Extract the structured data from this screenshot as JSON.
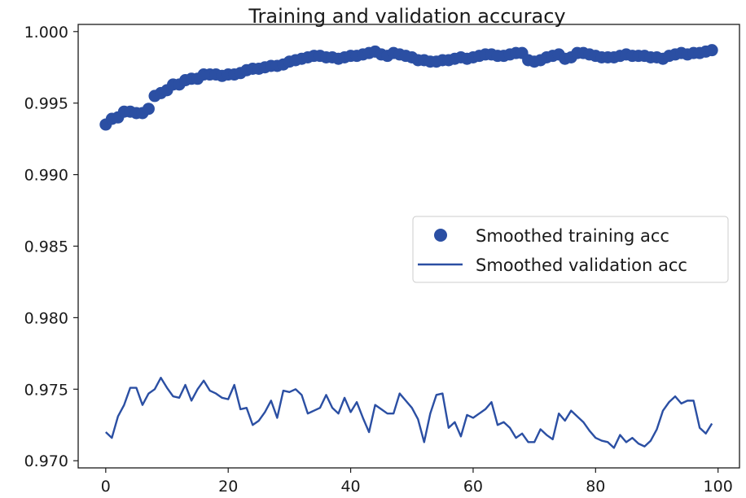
{
  "chart_data": {
    "type": "line",
    "title": "Training and validation accuracy",
    "xlabel": "",
    "ylabel": "",
    "xlim": [
      -4.5,
      103.5
    ],
    "ylim": [
      0.9695,
      1.0005
    ],
    "x_ticks": [
      0,
      20,
      40,
      60,
      80,
      100
    ],
    "x_tick_labels": [
      "0",
      "20",
      "40",
      "60",
      "80",
      "100"
    ],
    "y_ticks": [
      0.97,
      0.975,
      0.98,
      0.985,
      0.99,
      0.995,
      1.0
    ],
    "y_tick_labels": [
      "0.970",
      "0.975",
      "0.980",
      "0.985",
      "0.990",
      "0.995",
      "1.000"
    ],
    "grid": false,
    "legend_position": "center-right",
    "series": [
      {
        "name": "Smoothed training acc",
        "marker": "circle",
        "color": "#2b4fa3",
        "x": [
          0,
          1,
          2,
          3,
          4,
          5,
          6,
          7,
          8,
          9,
          10,
          11,
          12,
          13,
          14,
          15,
          16,
          17,
          18,
          19,
          20,
          21,
          22,
          23,
          24,
          25,
          26,
          27,
          28,
          29,
          30,
          31,
          32,
          33,
          34,
          35,
          36,
          37,
          38,
          39,
          40,
          41,
          42,
          43,
          44,
          45,
          46,
          47,
          48,
          49,
          50,
          51,
          52,
          53,
          54,
          55,
          56,
          57,
          58,
          59,
          60,
          61,
          62,
          63,
          64,
          65,
          66,
          67,
          68,
          69,
          70,
          71,
          72,
          73,
          74,
          75,
          76,
          77,
          78,
          79,
          80,
          81,
          82,
          83,
          84,
          85,
          86,
          87,
          88,
          89,
          90,
          91,
          92,
          93,
          94,
          95,
          96,
          97,
          98,
          99
        ],
        "values": [
          0.9935,
          0.9939,
          0.994,
          0.9944,
          0.9944,
          0.9943,
          0.9943,
          0.9946,
          0.9955,
          0.9957,
          0.9959,
          0.9963,
          0.9963,
          0.9966,
          0.9967,
          0.9967,
          0.997,
          0.997,
          0.997,
          0.9969,
          0.997,
          0.997,
          0.9971,
          0.9973,
          0.9974,
          0.9974,
          0.9975,
          0.9976,
          0.9976,
          0.9977,
          0.9979,
          0.998,
          0.9981,
          0.9982,
          0.9983,
          0.9983,
          0.9982,
          0.9982,
          0.9981,
          0.9982,
          0.9983,
          0.9983,
          0.9984,
          0.9985,
          0.9986,
          0.9984,
          0.9983,
          0.9985,
          0.9984,
          0.9983,
          0.9982,
          0.998,
          0.998,
          0.9979,
          0.9979,
          0.998,
          0.998,
          0.9981,
          0.9982,
          0.9981,
          0.9982,
          0.9983,
          0.9984,
          0.9984,
          0.9983,
          0.9983,
          0.9984,
          0.9985,
          0.9985,
          0.998,
          0.9979,
          0.998,
          0.9982,
          0.9983,
          0.9984,
          0.9981,
          0.9982,
          0.9985,
          0.9985,
          0.9984,
          0.9983,
          0.9982,
          0.9982,
          0.9982,
          0.9983,
          0.9984,
          0.9983,
          0.9983,
          0.9983,
          0.9982,
          0.9982,
          0.9981,
          0.9983,
          0.9984,
          0.9985,
          0.9984,
          0.9985,
          0.9985,
          0.9986,
          0.9987
        ]
      },
      {
        "name": "Smoothed validation acc",
        "marker": "line",
        "color": "#2b4fa3",
        "x": [
          0,
          1,
          2,
          3,
          4,
          5,
          6,
          7,
          8,
          9,
          10,
          11,
          12,
          13,
          14,
          15,
          16,
          17,
          18,
          19,
          20,
          21,
          22,
          23,
          24,
          25,
          26,
          27,
          28,
          29,
          30,
          31,
          32,
          33,
          34,
          35,
          36,
          37,
          38,
          39,
          40,
          41,
          42,
          43,
          44,
          45,
          46,
          47,
          48,
          49,
          50,
          51,
          52,
          53,
          54,
          55,
          56,
          57,
          58,
          59,
          60,
          61,
          62,
          63,
          64,
          65,
          66,
          67,
          68,
          69,
          70,
          71,
          72,
          73,
          74,
          75,
          76,
          77,
          78,
          79,
          80,
          81,
          82,
          83,
          84,
          85,
          86,
          87,
          88,
          89,
          90,
          91,
          92,
          93,
          94,
          95,
          96,
          97,
          98,
          99
        ],
        "values": [
          0.972,
          0.9716,
          0.9731,
          0.9739,
          0.9751,
          0.9751,
          0.9739,
          0.9747,
          0.975,
          0.9758,
          0.9751,
          0.9745,
          0.9744,
          0.9753,
          0.9742,
          0.975,
          0.9756,
          0.9749,
          0.9747,
          0.9744,
          0.9743,
          0.9753,
          0.9736,
          0.9737,
          0.9725,
          0.9728,
          0.9734,
          0.9742,
          0.973,
          0.9749,
          0.9748,
          0.975,
          0.9746,
          0.9733,
          0.9735,
          0.9737,
          0.9746,
          0.9737,
          0.9733,
          0.9744,
          0.9734,
          0.9741,
          0.973,
          0.972,
          0.9739,
          0.9736,
          0.9733,
          0.9733,
          0.9747,
          0.9742,
          0.9737,
          0.9729,
          0.9713,
          0.9733,
          0.9746,
          0.9747,
          0.9723,
          0.9727,
          0.9717,
          0.9732,
          0.973,
          0.9733,
          0.9736,
          0.9741,
          0.9725,
          0.9727,
          0.9723,
          0.9716,
          0.9719,
          0.9713,
          0.9713,
          0.9722,
          0.9718,
          0.9715,
          0.9733,
          0.9728,
          0.9735,
          0.9731,
          0.9727,
          0.9721,
          0.9716,
          0.9714,
          0.9713,
          0.9709,
          0.9718,
          0.9713,
          0.9716,
          0.9712,
          0.971,
          0.9714,
          0.9722,
          0.9735,
          0.9741,
          0.9745,
          0.974,
          0.9742,
          0.9742,
          0.9723,
          0.9719,
          0.9726
        ]
      }
    ]
  }
}
